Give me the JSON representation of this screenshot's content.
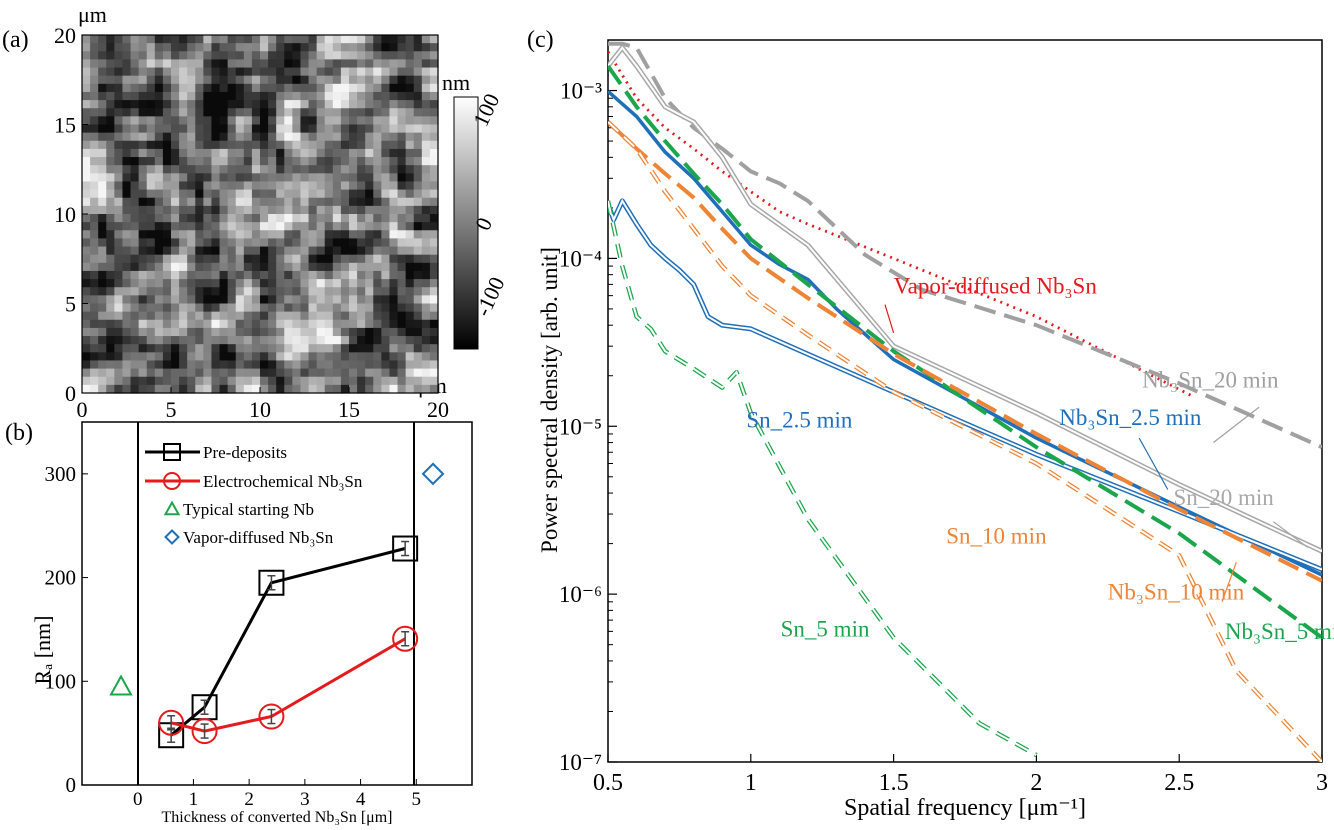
{
  "panel_a": {
    "label": "(a)",
    "unit_top": "μm",
    "unit_right": "μm",
    "y_ticks": [
      "0",
      "5",
      "10",
      "15",
      "20"
    ],
    "x_ticks": [
      "0",
      "5",
      "10",
      "15",
      "20"
    ],
    "colorbar_unit": "nm",
    "colorbar_ticks": [
      "100",
      "0",
      "-100"
    ]
  },
  "panel_b": {
    "label": "(b)",
    "xlabel": "Thickness of converted Nb₃Sn [μm]",
    "ylabel": "Rₐ [nm]"
  },
  "panel_c": {
    "label": "(c)",
    "xlabel": "Spatial frequency [μm⁻¹]",
    "ylabel": "Power spectral density [arb. unit]"
  },
  "chart_data": [
    {
      "type": "heatmap",
      "panel": "a",
      "x_range": [
        0,
        20
      ],
      "y_range": [
        0,
        20
      ],
      "x_ticks": [
        0,
        5,
        10,
        15,
        20
      ],
      "y_ticks": [
        0,
        5,
        10,
        15,
        20
      ],
      "colorbar_range": [
        -150,
        150
      ],
      "colorbar_ticks": [
        100,
        0,
        -100
      ],
      "colormap": "grayscale"
    },
    {
      "type": "scatter",
      "panel": "b",
      "x_range": [
        -1,
        6
      ],
      "y_range": [
        0,
        350
      ],
      "x_ticks": [
        0,
        1,
        2,
        3,
        4,
        5
      ],
      "y_ticks": [
        0,
        100,
        200,
        300
      ],
      "legend_position": "top-center",
      "series": [
        {
          "name": "Pre-deposits",
          "color": "#000000",
          "marker": "square",
          "line": true,
          "x": [
            0.6,
            1.2,
            2.4,
            4.8
          ],
          "y": [
            48,
            75,
            195,
            228
          ]
        },
        {
          "name": "Electrochemical Nb₃Sn",
          "color": "#e41a1c",
          "marker": "circle",
          "line": true,
          "x": [
            0.6,
            1.2,
            2.4,
            4.8
          ],
          "y": [
            60,
            52,
            66,
            141
          ]
        },
        {
          "name": "Typical starting Nb",
          "color": "#1ca64c",
          "marker": "triangle",
          "line": false,
          "x": [
            -0.3
          ],
          "y": [
            95
          ]
        },
        {
          "name": "Vapor-diffused Nb₃Sn",
          "color": "#1f6fba",
          "marker": "diamond",
          "line": false,
          "x": [
            5.3
          ],
          "y": [
            300
          ]
        }
      ]
    },
    {
      "type": "line",
      "panel": "c",
      "y_scale": "log",
      "x_range": [
        0.5,
        3
      ],
      "y_range": [
        1e-07,
        0.002
      ],
      "x_ticks": [
        0.5,
        1,
        1.5,
        2,
        2.5,
        3
      ],
      "y_ticks": [
        "10⁻⁷",
        "10⁻⁶",
        "10⁻⁵",
        "10⁻⁴",
        "10⁻³"
      ],
      "series": [
        {
          "name": "Vapor-diffused Nb₃Sn",
          "color": "#e41a1c",
          "style": "dotted",
          "x": [
            0.5,
            0.6,
            0.7,
            0.8,
            0.9,
            1.0,
            1.1,
            1.2,
            1.5,
            2.0,
            2.55
          ],
          "y": [
            0.0017,
            0.0009,
            0.0006,
            0.00045,
            0.00033,
            0.00025,
            0.00019,
            0.00016,
            0.0001,
            4.5e-05,
            1.5e-05
          ]
        },
        {
          "name": "Nb₃Sn_20 min",
          "color": "#a0a0a0",
          "style": "dashed-thick",
          "x": [
            0.5,
            0.55,
            0.6,
            0.7,
            0.8,
            0.9,
            1.0,
            1.1,
            1.2,
            1.4,
            1.6,
            2.0,
            2.5,
            3.0
          ],
          "y": [
            0.0019,
            0.0019,
            0.0018,
            0.0009,
            0.0006,
            0.00045,
            0.00033,
            0.00028,
            0.00022,
            0.000105,
            6.5e-05,
            4e-05,
            1.8e-05,
            7.5e-06
          ]
        },
        {
          "name": "Sn_20 min",
          "color": "#a8a8a8",
          "style": "double-thin",
          "x": [
            0.5,
            0.55,
            0.6,
            0.7,
            0.8,
            0.9,
            1.0,
            1.2,
            1.5,
            2.0,
            2.5,
            3.0
          ],
          "y": [
            0.0014,
            0.0018,
            0.0014,
            0.0008,
            0.00065,
            0.0004,
            0.00021,
            0.00012,
            3e-05,
            1.2e-05,
            4.5e-06,
            1.8e-06
          ]
        },
        {
          "name": "Nb₃Sn_2.5 min",
          "color": "#1f6fba",
          "style": "solid-thick",
          "x": [
            0.5,
            0.6,
            0.7,
            0.8,
            0.9,
            1.0,
            1.1,
            1.2,
            1.3,
            1.5,
            2.0,
            2.5,
            3.0
          ],
          "y": [
            0.00099,
            0.0007,
            0.00043,
            0.0003,
            0.00019,
            0.00012,
            9.2e-05,
            7.5e-05,
            5e-05,
            2.5e-05,
            8.5e-06,
            3.3e-06,
            1.3e-06
          ]
        },
        {
          "name": "Sn_2.5 min",
          "color": "#1f6fba",
          "style": "double-thin",
          "x": [
            0.5,
            0.52,
            0.55,
            0.6,
            0.65,
            0.7,
            0.75,
            0.8,
            0.85,
            0.9,
            1.0,
            1.5,
            2.0,
            2.5,
            3.0
          ],
          "y": [
            0.00021,
            0.00017,
            0.00022,
            0.00016,
            0.00012,
            0.0001,
            8.5e-05,
            7e-05,
            4.5e-05,
            4e-05,
            3.8e-05,
            1.6e-05,
            6.8e-06,
            3.1e-06,
            1.4e-06
          ]
        },
        {
          "name": "Nb₃Sn_5 min",
          "color": "#1ca64c",
          "style": "dashed-thick",
          "x": [
            0.5,
            0.6,
            0.7,
            0.8,
            0.9,
            1.0,
            1.2,
            1.5,
            2.0,
            2.5,
            3.0
          ],
          "y": [
            0.0014,
            0.0008,
            0.0005,
            0.00032,
            0.00021,
            0.00013,
            7e-05,
            2.8e-05,
            7.5e-06,
            2.3e-06,
            5.5e-07
          ]
        },
        {
          "name": "Sn_5 min",
          "color": "#1ca64c",
          "style": "double-dashed",
          "x": [
            0.5,
            0.55,
            0.6,
            0.65,
            0.7,
            0.8,
            0.9,
            0.95,
            1.0,
            1.2,
            1.5,
            1.8,
            2.0
          ],
          "y": [
            0.00022,
            9e-05,
            4.5e-05,
            3.8e-05,
            2.8e-05,
            2.2e-05,
            1.7e-05,
            2.1e-05,
            1.2e-05,
            2.8e-06,
            5.5e-07,
            1.7e-07,
            1.1e-07
          ]
        },
        {
          "name": "Nb₃Sn_10 min",
          "color": "#ee8436",
          "style": "dashed-thick",
          "x": [
            0.5,
            0.6,
            0.7,
            0.8,
            0.9,
            1.0,
            1.2,
            1.5,
            2.0,
            2.5,
            3.0
          ],
          "y": [
            0.00065,
            0.00045,
            0.00032,
            0.00023,
            0.00015,
            0.0001,
            5.8e-05,
            2.7e-05,
            9e-06,
            3.2e-06,
            1.2e-06
          ]
        },
        {
          "name": "Sn_10 min",
          "color": "#ee8436",
          "style": "double-dashed",
          "x": [
            0.5,
            0.6,
            0.7,
            0.8,
            0.9,
            1.0,
            1.2,
            1.5,
            2.0,
            2.5,
            2.7,
            3.0
          ],
          "y": [
            0.00065,
            0.00045,
            0.00025,
            0.00015,
            9e-05,
            6e-05,
            3.5e-05,
            1.6e-05,
            6e-06,
            1.7e-06,
            3.5e-07,
            1e-07
          ]
        }
      ]
    }
  ]
}
